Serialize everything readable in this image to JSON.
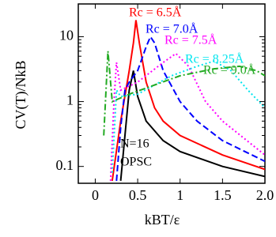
{
  "chart_data": {
    "type": "line",
    "xlabel": "kBT/ε",
    "ylabel": "CV(T)/NkB",
    "yscale": "log",
    "xlim": [
      -0.2,
      2.0
    ],
    "ylim": [
      0.055,
      32
    ],
    "xticks": [
      0,
      0.5,
      1,
      1.5,
      {
        "value": 2,
        "label": "2.0"
      }
    ],
    "yticks": [
      0.1,
      1,
      10
    ],
    "annotations": [
      "N=16",
      "OPSC"
    ],
    "series": [
      {
        "color": "#000000",
        "linestyle": "solid",
        "x": [
          0.3,
          0.35,
          0.4,
          0.45,
          0.5,
          0.6,
          0.8,
          1.0,
          1.5,
          2.0
        ],
        "values": [
          0.06,
          0.3,
          1.5,
          3,
          1.2,
          0.5,
          0.25,
          0.17,
          0.1,
          0.07
        ]
      },
      {
        "name": "Rc = 6.5Å",
        "color": "#ff0000",
        "linestyle": "solid",
        "x": [
          0.2,
          0.3,
          0.4,
          0.45,
          0.48,
          0.52,
          0.6,
          0.7,
          0.8,
          1.0,
          1.5,
          2.0
        ],
        "values": [
          0.06,
          0.5,
          3,
          8,
          18,
          8,
          2,
          0.8,
          0.5,
          0.3,
          0.15,
          0.09
        ]
      },
      {
        "name": "Rc = 7.0Å",
        "color": "#0000ff",
        "linestyle": "dashed",
        "x": [
          0.25,
          0.3,
          0.35,
          0.4,
          0.5,
          0.6,
          0.65,
          0.7,
          0.8,
          1.0,
          1.2,
          1.5,
          2.0
        ],
        "values": [
          0.06,
          0.4,
          1.5,
          2,
          3,
          7,
          10,
          8,
          3,
          1,
          0.5,
          0.25,
          0.12
        ]
      },
      {
        "name": "Rc = 7.5Å",
        "color": "#ff00ff",
        "linestyle": "dotted",
        "x": [
          0.18,
          0.22,
          0.25,
          0.3,
          0.5,
          0.8,
          0.95,
          1.1,
          1.3,
          1.5,
          2.0
        ],
        "values": [
          0.06,
          1,
          4,
          1.5,
          2,
          4,
          5.5,
          3.5,
          1,
          0.5,
          0.15
        ]
      },
      {
        "name": "Rc = 8.25Å",
        "color": "#00e5ee",
        "linestyle": "dotted",
        "x": [
          0.2,
          0.25,
          0.3,
          0.5,
          0.9,
          1.2,
          1.4,
          1.6,
          1.8,
          2.0
        ],
        "values": [
          0.08,
          1.5,
          1.2,
          1.3,
          2.5,
          3.5,
          4.2,
          3,
          1.5,
          0.8
        ]
      },
      {
        "name": "Rc = 9.0Å",
        "color": "#22aa22",
        "linestyle": "dashdot",
        "x": [
          0.1,
          0.15,
          0.2,
          0.4,
          1.0,
          1.4,
          1.7,
          1.9,
          2.0
        ],
        "values": [
          0.3,
          6,
          1,
          1.3,
          2.5,
          3.2,
          3.5,
          3,
          2.5
        ]
      }
    ]
  }
}
